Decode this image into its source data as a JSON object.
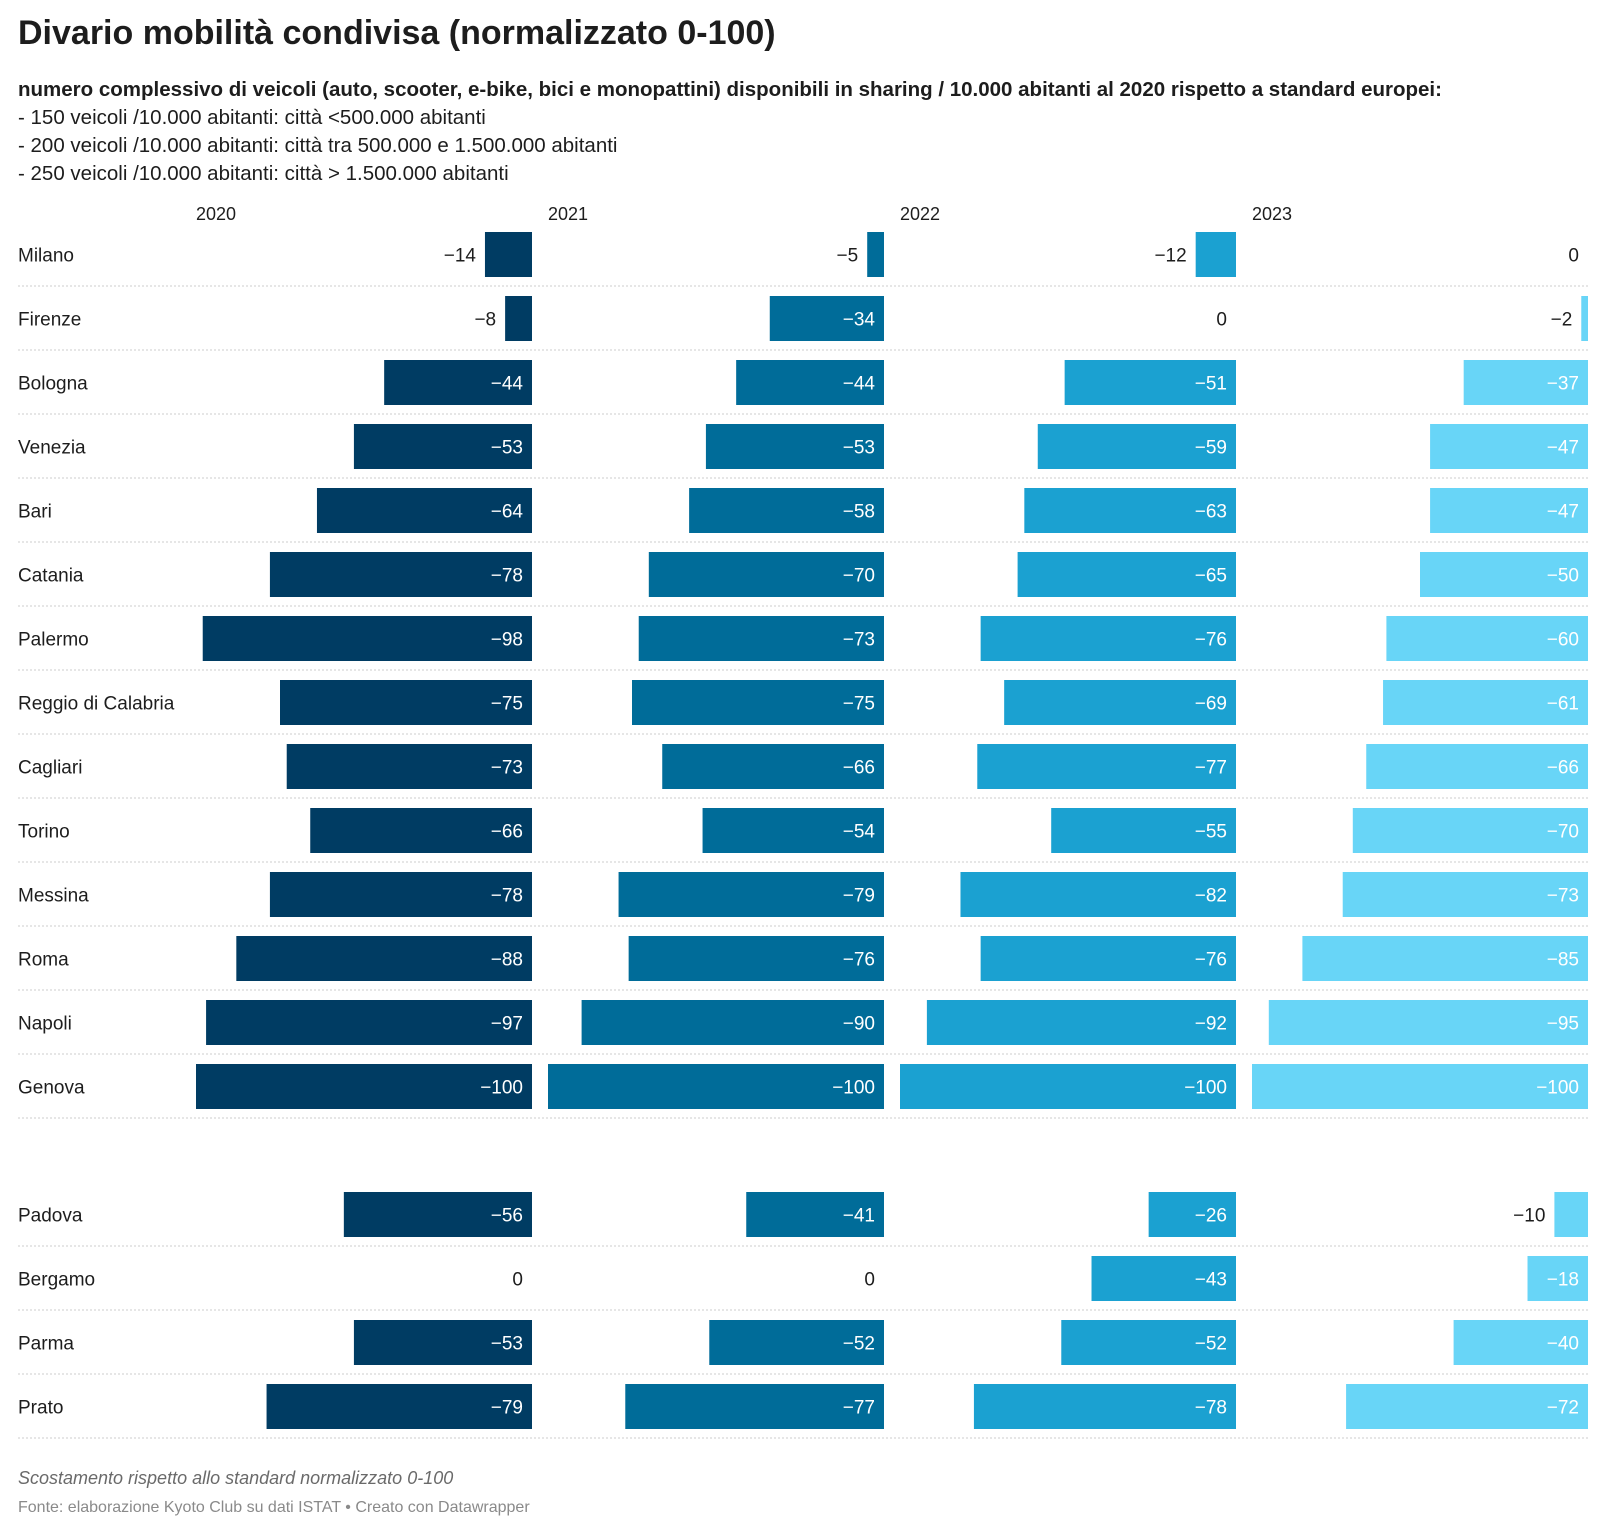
{
  "title": "Divario mobilità condivisa (normalizzato 0-100)",
  "subtitle": {
    "lead": "numero complessivo di veicoli (auto, scooter, e-bike, bici e monopattini) disponibili in sharing / 10.000 abitanti al 2020 rispetto a standard europei:",
    "lines": [
      "- 150 veicoli /10.000 abitanti: città <500.000 abitanti",
      "- 200 veicoli /10.000 abitanti: città tra 500.000 e 1.500.000 abitanti",
      "- 250 veicoli /10.000 abitanti: città > 1.500.000 abitanti"
    ]
  },
  "footer": {
    "note": "Scostamento rispetto allo standard normalizzato 0-100",
    "source": "Fonte: elaborazione Kyoto Club su dati ISTAT • Creato con Datawrapper"
  },
  "colors": {
    "2020": "#003c63",
    "2021": "#006c99",
    "2022": "#1ba1d1",
    "2023": "#68d5f7",
    "label_inside": "#ffffff",
    "label_outside": "#1d1d1d",
    "grid": "#cccccc"
  },
  "chart_data": {
    "type": "bar",
    "orientation": "horizontal",
    "xlim": [
      -100,
      0
    ],
    "columns": [
      "2020",
      "2021",
      "2022",
      "2023"
    ],
    "groups": [
      {
        "categories": [
          "Milano",
          "Firenze",
          "Bologna",
          "Venezia",
          "Bari",
          "Catania",
          "Palermo",
          "Reggio di Calabria",
          "Cagliari",
          "Torino",
          "Messina",
          "Roma",
          "Napoli",
          "Genova"
        ],
        "series": [
          {
            "name": "2020",
            "values": [
              -14,
              -8,
              -44,
              -53,
              -64,
              -78,
              -98,
              -75,
              -73,
              -66,
              -78,
              -88,
              -97,
              -100
            ]
          },
          {
            "name": "2021",
            "values": [
              -5,
              -34,
              -44,
              -53,
              -58,
              -70,
              -73,
              -75,
              -66,
              -54,
              -79,
              -76,
              -90,
              -100
            ]
          },
          {
            "name": "2022",
            "values": [
              -12,
              0,
              -51,
              -59,
              -63,
              -65,
              -76,
              -69,
              -77,
              -55,
              -82,
              -76,
              -92,
              -100
            ]
          },
          {
            "name": "2023",
            "values": [
              0,
              -2,
              -37,
              -47,
              -47,
              -50,
              -60,
              -61,
              -66,
              -70,
              -73,
              -85,
              -95,
              -100
            ]
          }
        ]
      },
      {
        "categories": [
          "Padova",
          "Bergamo",
          "Parma",
          "Prato"
        ],
        "series": [
          {
            "name": "2020",
            "values": [
              -56,
              0,
              -53,
              -79
            ]
          },
          {
            "name": "2021",
            "values": [
              -41,
              0,
              -52,
              -77
            ]
          },
          {
            "name": "2022",
            "values": [
              -26,
              -43,
              -52,
              -78
            ]
          },
          {
            "name": "2023",
            "values": [
              -10,
              -18,
              -40,
              -72
            ]
          }
        ]
      }
    ]
  }
}
